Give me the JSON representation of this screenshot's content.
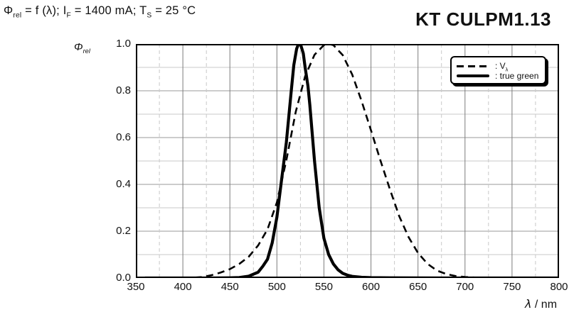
{
  "header": {
    "formula": {
      "phi": "Φ",
      "phi_sub": "rel",
      "seg1": " = f (λ); I",
      "i_sub": "F",
      "seg2": " = 1400 mA; T",
      "t_sub": "S",
      "seg3": " = 25 °C"
    },
    "part_number": "KT CULPM1.13"
  },
  "axes": {
    "y_label": {
      "symbol": "Φ",
      "sub": "rel"
    },
    "x_label": {
      "symbol": "λ",
      "unit": " / nm"
    },
    "y_ticks": [
      "1.0",
      "0.8",
      "0.6",
      "0.4",
      "0.2",
      "0.0"
    ],
    "x_ticks": [
      "350",
      "400",
      "450",
      "500",
      "550",
      "600",
      "650",
      "700",
      "750",
      "800"
    ]
  },
  "legend": {
    "items": [
      {
        "style": "dashed",
        "label_prefix": ": V",
        "label_sub": "λ"
      },
      {
        "style": "solid",
        "label_prefix": ": true green",
        "label_sub": ""
      }
    ]
  },
  "colors": {
    "curve": "#000000",
    "grid_minor": "#c9c9c9",
    "grid_major_h": "#9a9a9a",
    "grid_major_v": "#7d7d7d",
    "background": "#ffffff"
  },
  "chart_data": {
    "type": "line",
    "title": "Φrel = f (λ); IF = 1400 mA; TS = 25 °C",
    "part_number": "KT CULPM1.13",
    "xlabel": "λ / nm",
    "ylabel": "Φrel",
    "xlim": [
      350,
      800
    ],
    "ylim": [
      0,
      1
    ],
    "x_major_step": 50,
    "x_minor_step": 25,
    "y_major_step": 0.2,
    "y_minor_step": 0.1,
    "grid": true,
    "legend_position": "top-right",
    "series": [
      {
        "name": "Vλ",
        "style": "dashed",
        "points": [
          [
            400,
            0.0004
          ],
          [
            410,
            0.0012
          ],
          [
            420,
            0.004
          ],
          [
            430,
            0.0116
          ],
          [
            440,
            0.023
          ],
          [
            450,
            0.038
          ],
          [
            460,
            0.06
          ],
          [
            470,
            0.091
          ],
          [
            480,
            0.139
          ],
          [
            490,
            0.208
          ],
          [
            500,
            0.323
          ],
          [
            510,
            0.503
          ],
          [
            520,
            0.71
          ],
          [
            530,
            0.862
          ],
          [
            540,
            0.954
          ],
          [
            550,
            0.995
          ],
          [
            555,
            1.0
          ],
          [
            560,
            0.995
          ],
          [
            570,
            0.952
          ],
          [
            580,
            0.87
          ],
          [
            590,
            0.757
          ],
          [
            600,
            0.631
          ],
          [
            610,
            0.503
          ],
          [
            620,
            0.381
          ],
          [
            630,
            0.265
          ],
          [
            640,
            0.175
          ],
          [
            650,
            0.107
          ],
          [
            660,
            0.061
          ],
          [
            670,
            0.032
          ],
          [
            680,
            0.017
          ],
          [
            690,
            0.0082
          ],
          [
            700,
            0.0041
          ],
          [
            710,
            0.0021
          ],
          [
            720,
            0.001
          ],
          [
            730,
            0.0005
          ],
          [
            740,
            0.0003
          ],
          [
            750,
            0.0002
          ],
          [
            760,
            0.0001
          ],
          [
            780,
            0.0
          ],
          [
            800,
            0.0
          ]
        ]
      },
      {
        "name": "true green",
        "style": "solid",
        "points": [
          [
            360,
            0.0
          ],
          [
            400,
            0.0
          ],
          [
            430,
            0.0
          ],
          [
            450,
            0.001
          ],
          [
            460,
            0.002
          ],
          [
            470,
            0.008
          ],
          [
            480,
            0.025
          ],
          [
            485,
            0.05
          ],
          [
            490,
            0.08
          ],
          [
            495,
            0.15
          ],
          [
            500,
            0.26
          ],
          [
            505,
            0.42
          ],
          [
            510,
            0.58
          ],
          [
            515,
            0.79
          ],
          [
            518,
            0.91
          ],
          [
            521,
            0.98
          ],
          [
            523,
            1.0
          ],
          [
            525,
            1.0
          ],
          [
            528,
            0.96
          ],
          [
            530,
            0.9
          ],
          [
            533,
            0.82
          ],
          [
            535,
            0.74
          ],
          [
            540,
            0.5
          ],
          [
            545,
            0.3
          ],
          [
            550,
            0.17
          ],
          [
            555,
            0.1
          ],
          [
            560,
            0.06
          ],
          [
            565,
            0.035
          ],
          [
            570,
            0.02
          ],
          [
            575,
            0.012
          ],
          [
            580,
            0.007
          ],
          [
            590,
            0.003
          ],
          [
            600,
            0.0015
          ],
          [
            620,
            0.0008
          ],
          [
            650,
            0.0004
          ],
          [
            700,
            0.0
          ],
          [
            750,
            0.0
          ],
          [
            800,
            0.0
          ]
        ]
      }
    ]
  }
}
